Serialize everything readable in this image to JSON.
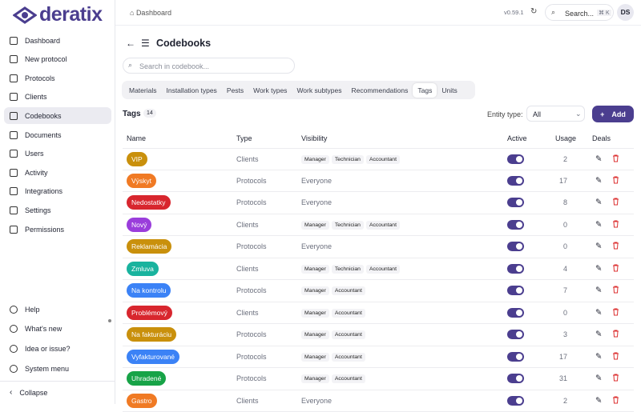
{
  "brand": "deratix",
  "sidebar": {
    "active": "Codebooks",
    "nav": [
      "Dashboard",
      "New protocol",
      "Protocols",
      "Clients",
      "Codebooks",
      "Documents",
      "Users",
      "Activity",
      "Integrations",
      "Settings",
      "Permissions"
    ],
    "bottom": [
      "Help",
      "What's new",
      "Idea or issue?",
      "System menu"
    ],
    "collapse": "Collapse"
  },
  "topbar": {
    "breadcrumb": "Dashboard",
    "version": "v0.59.1",
    "search": "Search...",
    "shortcut": "⌘ K",
    "avatar": "DS"
  },
  "page": {
    "title": "Codebooks",
    "search_placeholder": "Search in codebook...",
    "tabs": {
      "items": [
        "Materials",
        "Installation types",
        "Pests",
        "Work types",
        "Work subtypes",
        "Recommendations",
        "Tags",
        "Units"
      ],
      "active": "Tags"
    },
    "section": {
      "title": "Tags",
      "count": "14",
      "filter_label": "Entity type:",
      "filter_value": "All",
      "add": "Add"
    }
  },
  "table": {
    "columns": [
      "Name",
      "Type",
      "Visibility",
      "Active",
      "Usage",
      "Deals"
    ],
    "rows": [
      {
        "name": "VIP",
        "color": "#c9900c",
        "type": "Clients",
        "visibility": [
          "Manager",
          "Technician",
          "Accountant"
        ],
        "active": true,
        "usage": "2"
      },
      {
        "name": "Výskyt",
        "color": "#f07a24",
        "type": "Protocols",
        "visibility": "Everyone",
        "active": true,
        "usage": "17"
      },
      {
        "name": "Nedostatky",
        "color": "#d8262e",
        "type": "Protocols",
        "visibility": "Everyone",
        "active": true,
        "usage": "8"
      },
      {
        "name": "Nový",
        "color": "#9a3ddb",
        "type": "Clients",
        "visibility": [
          "Manager",
          "Technician",
          "Accountant"
        ],
        "active": true,
        "usage": "0"
      },
      {
        "name": "Reklamácia",
        "color": "#c9900c",
        "type": "Protocols",
        "visibility": "Everyone",
        "active": true,
        "usage": "0"
      },
      {
        "name": "Zmluva",
        "color": "#19b39e",
        "type": "Clients",
        "visibility": [
          "Manager",
          "Technician",
          "Accountant"
        ],
        "active": true,
        "usage": "4"
      },
      {
        "name": "Na kontrolu",
        "color": "#3b82f6",
        "type": "Protocols",
        "visibility": [
          "Manager",
          "Accountant"
        ],
        "active": true,
        "usage": "7"
      },
      {
        "name": "Problémový",
        "color": "#d8262e",
        "type": "Clients",
        "visibility": [
          "Manager",
          "Accountant"
        ],
        "active": true,
        "usage": "0"
      },
      {
        "name": "Na fakturáciu",
        "color": "#c9900c",
        "type": "Protocols",
        "visibility": [
          "Manager",
          "Accountant"
        ],
        "active": true,
        "usage": "3"
      },
      {
        "name": "Vyfakturované",
        "color": "#3b82f6",
        "type": "Protocols",
        "visibility": [
          "Manager",
          "Accountant"
        ],
        "active": true,
        "usage": "17"
      },
      {
        "name": "Uhradené",
        "color": "#17a347",
        "type": "Protocols",
        "visibility": [
          "Manager",
          "Accountant"
        ],
        "active": true,
        "usage": "31"
      },
      {
        "name": "Gastro",
        "color": "#f07a24",
        "type": "Clients",
        "visibility": "Everyone",
        "active": true,
        "usage": "2"
      }
    ]
  }
}
